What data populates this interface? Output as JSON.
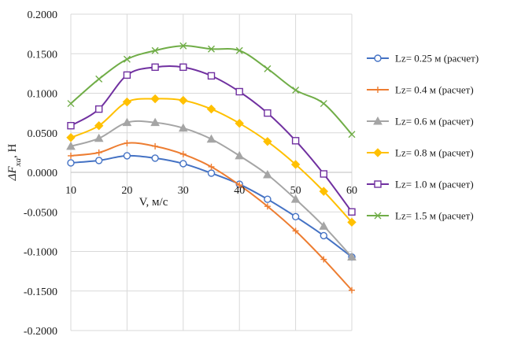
{
  "chart_data": {
    "type": "line",
    "xlabel": "V, м/с",
    "ylabel": "ΔFxa, Н",
    "ylabel_main": "ΔF",
    "ylabel_sub": "xa",
    "ylabel_unit": ", Н",
    "xlim": [
      10,
      60
    ],
    "ylim": [
      -0.2,
      0.2
    ],
    "x_ticks": [
      10,
      20,
      30,
      40,
      50,
      60
    ],
    "y_ticks": [
      0.2,
      0.15,
      0.1,
      0.05,
      0.0,
      -0.05,
      -0.1,
      -0.15,
      -0.2
    ],
    "y_tick_labels": [
      "0.2000",
      "0.1500",
      "0.1000",
      "0.0500",
      "0.0000",
      "-0.0500",
      "-0.1000",
      "-0.1500",
      "-0.2000"
    ],
    "x_tick_labels": [
      "10",
      "20",
      "30",
      "40",
      "50",
      "60"
    ],
    "grid": true,
    "legend_position": "right",
    "x": [
      10,
      15,
      20,
      25,
      30,
      35,
      40,
      45,
      50,
      55,
      60
    ],
    "series": [
      {
        "name": "Lz= 0.25 м (расчет)",
        "color": "#4472c4",
        "marker": "circle",
        "values": [
          0.012,
          0.015,
          0.021,
          0.018,
          0.011,
          -0.001,
          -0.015,
          -0.034,
          -0.056,
          -0.08,
          -0.107
        ]
      },
      {
        "name": "Lz= 0.4 м (расчет)",
        "color": "#ed7d31",
        "marker": "plus",
        "values": [
          0.021,
          0.025,
          0.037,
          0.033,
          0.023,
          0.007,
          -0.016,
          -0.043,
          -0.074,
          -0.11,
          -0.149
        ]
      },
      {
        "name": "Lz= 0.6 м (расчет)",
        "color": "#a5a5a5",
        "marker": "triangle",
        "values": [
          0.033,
          0.043,
          0.063,
          0.063,
          0.056,
          0.042,
          0.021,
          -0.003,
          -0.034,
          -0.068,
          -0.107
        ]
      },
      {
        "name": "Lz= 0.8 м (расчет)",
        "color": "#ffc000",
        "marker": "diamond",
        "values": [
          0.044,
          0.059,
          0.089,
          0.093,
          0.091,
          0.08,
          0.062,
          0.039,
          0.01,
          -0.024,
          -0.063
        ]
      },
      {
        "name": "Lz= 1.0 м (расчет)",
        "color": "#7030a0",
        "marker": "square",
        "values": [
          0.059,
          0.08,
          0.123,
          0.133,
          0.133,
          0.122,
          0.102,
          0.075,
          0.04,
          -0.002,
          -0.05
        ]
      },
      {
        "name": "Lz= 1.5 м (расчет)",
        "color": "#70ad47",
        "marker": "x",
        "values": [
          0.087,
          0.118,
          0.143,
          0.154,
          0.16,
          0.156,
          0.154,
          0.131,
          0.104,
          0.087,
          0.048
        ]
      }
    ]
  }
}
